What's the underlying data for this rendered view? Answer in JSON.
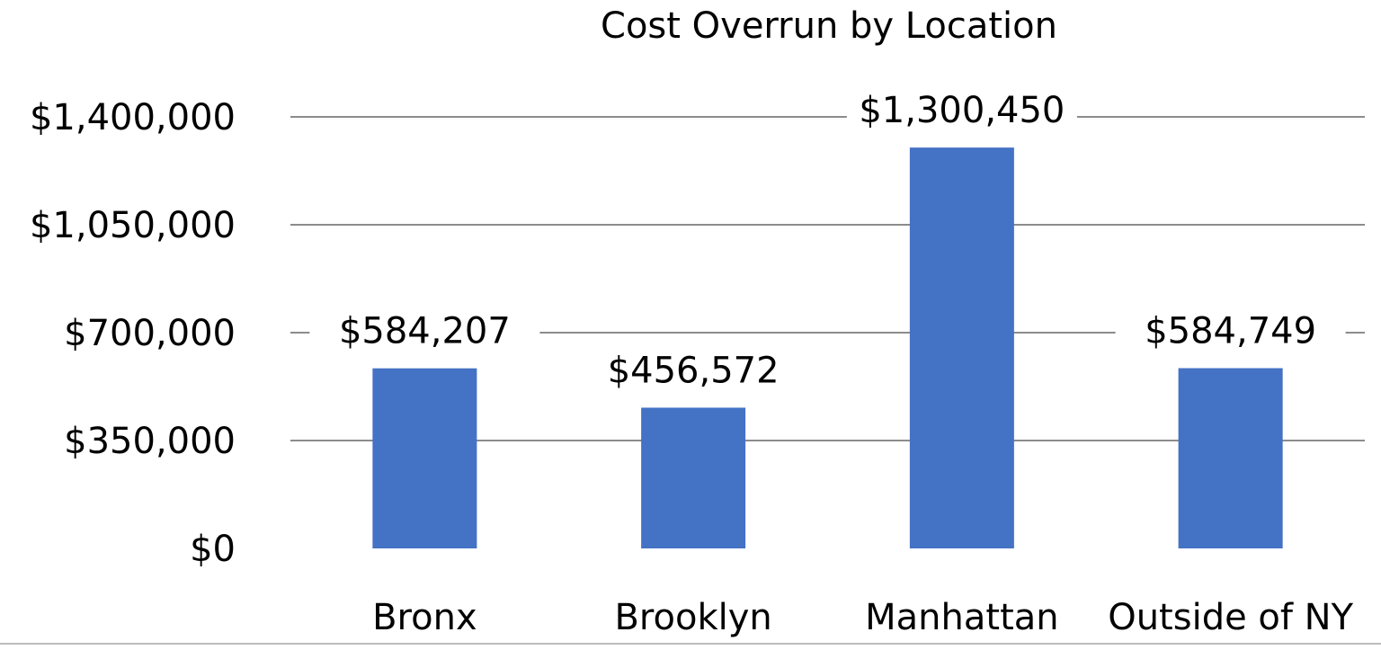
{
  "chart_data": {
    "type": "bar",
    "title": "Cost Overrun by Location",
    "categories": [
      "Bronx",
      "Brooklyn",
      "Manhattan",
      "Outside of NY"
    ],
    "values": [
      584207,
      456572,
      1300450,
      584749
    ],
    "data_labels": [
      "$584,207",
      "$456,572",
      "$1,300,450",
      "$584,749"
    ],
    "ylim": [
      0,
      1400000
    ],
    "yticks": [
      0,
      350000,
      700000,
      1050000,
      1400000
    ],
    "ytick_labels": [
      "$0",
      "$350,000",
      "$700,000",
      "$1,050,000",
      "$1,400,000"
    ],
    "grid": true,
    "legend": "none",
    "colors": {
      "bar": "#4472C4",
      "grid": "#8c8c8c",
      "text": "#000000"
    }
  }
}
